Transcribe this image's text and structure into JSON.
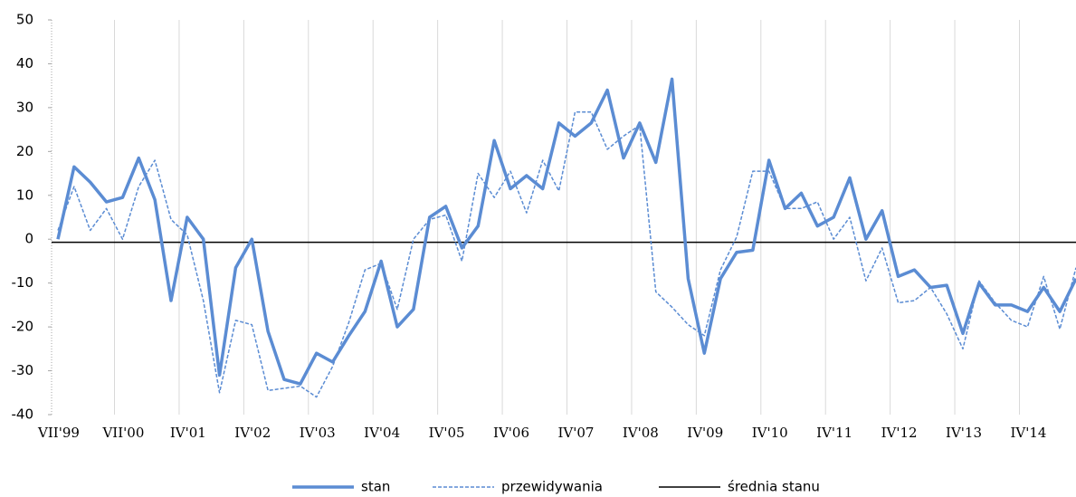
{
  "chart_data": {
    "type": "line",
    "categories": [
      "VII'99",
      null,
      null,
      null,
      "VII'00",
      null,
      null,
      null,
      "IV'01",
      null,
      null,
      null,
      "IV'02",
      null,
      null,
      null,
      "IV'03",
      null,
      null,
      null,
      "IV'04",
      null,
      null,
      null,
      "IV'05",
      null,
      null,
      null,
      "IV'06",
      null,
      null,
      null,
      "IV'07",
      null,
      null,
      null,
      "IV'08",
      null,
      null,
      null,
      "IV'09",
      null,
      null,
      null,
      "IV'10",
      null,
      null,
      null,
      "IV'11",
      null,
      null,
      null,
      "IV'12",
      null,
      null,
      null,
      "IV'13",
      null,
      null,
      null,
      "IV'14",
      null,
      null,
      null
    ],
    "series": [
      {
        "name": "stan",
        "color": "#5b8cd3",
        "width": 3.5,
        "dashed": false,
        "values": [
          0,
          16.5,
          13,
          8.5,
          9.5,
          18.5,
          9,
          -14,
          5,
          0,
          -31,
          -6.5,
          0,
          -21,
          -32,
          -33,
          -26,
          -28,
          -22,
          -16.5,
          -5,
          -20,
          -16,
          5,
          7.5,
          -2,
          3,
          22.5,
          11.5,
          14.5,
          11.5,
          26.5,
          23.5,
          26.5,
          34,
          18.5,
          26.5,
          17.5,
          36.5,
          -9,
          -26,
          -9,
          -3,
          -2.5,
          18,
          7,
          10.5,
          3,
          5,
          14,
          0,
          6.5,
          -8.5,
          -7,
          -11,
          -10.5,
          -21.5,
          -10,
          -15,
          -15,
          -16.5,
          -11,
          -16.5,
          -9
        ]
      },
      {
        "name": "przewidywania",
        "color": "#5b8cd3",
        "width": 1.5,
        "dashed": true,
        "values": [
          2,
          12,
          2,
          7,
          0,
          12,
          18,
          4.5,
          1,
          -14,
          -35,
          -18.5,
          -19.5,
          -34.5,
          -34,
          -33.5,
          -36,
          -29,
          -19,
          -7,
          -5.5,
          -16,
          0,
          4.5,
          5.5,
          -5,
          15,
          9.5,
          15.5,
          6,
          18,
          11,
          29,
          29,
          20.5,
          23.5,
          26,
          -12,
          -15.5,
          -19.5,
          -22,
          -7,
          0.5,
          15.5,
          15.5,
          7,
          7,
          8.5,
          0,
          5,
          -9.5,
          -2,
          -14.5,
          -14,
          -11,
          -17,
          -25,
          -9.5,
          -14.5,
          -18.5,
          -20,
          -8.5,
          -20.5,
          -6.5
        ]
      }
    ],
    "mean": {
      "name": "średnia stanu",
      "value": -0.7,
      "color": "#000000"
    },
    "ylim": [
      -40,
      50
    ],
    "yticks": [
      -40,
      -30,
      -20,
      -10,
      0,
      10,
      20,
      30,
      40,
      50
    ],
    "grid": true,
    "legend": "bottom"
  }
}
